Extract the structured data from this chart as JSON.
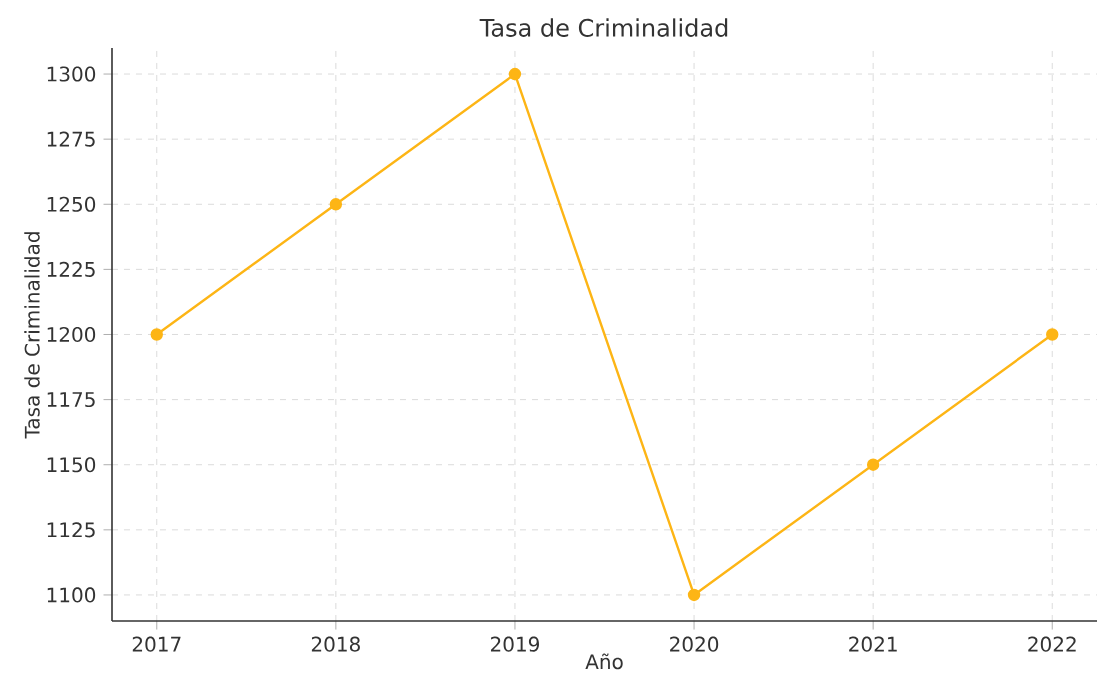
{
  "chart_data": {
    "type": "line",
    "title": "Tasa de Criminalidad",
    "xlabel": "Año",
    "ylabel": "Tasa de Criminalidad",
    "x": [
      2017,
      2018,
      2019,
      2020,
      2021,
      2022
    ],
    "values": [
      1200,
      1250,
      1300,
      1100,
      1150,
      1200
    ],
    "color": "#fdb515",
    "marker": "circle",
    "line_style": "solid",
    "grid": true,
    "xlim": [
      2016.75,
      2022.25
    ],
    "ylim": [
      1090,
      1310
    ],
    "xticks": [
      2017,
      2018,
      2019,
      2020,
      2021,
      2022
    ],
    "yticks": [
      1100,
      1125,
      1150,
      1175,
      1200,
      1225,
      1250,
      1275,
      1300
    ]
  }
}
